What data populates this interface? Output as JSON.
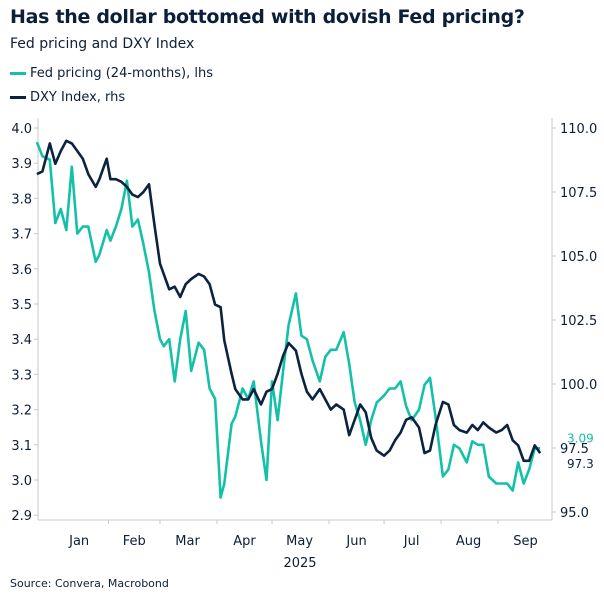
{
  "title": "Has the dollar bottomed with dovish Fed pricing?",
  "subtitle": "Fed pricing and DXY Index",
  "source": "Source: Convera, Macrobond",
  "chart_data": {
    "type": "line",
    "title": "Has the dollar bottomed with dovish Fed pricing?",
    "subtitle": "Fed pricing and DXY Index",
    "legend_placement": "top-left",
    "grid": false,
    "x_axis": {
      "type": "date",
      "tick_labels": [
        "Jan",
        "Feb",
        "Mar",
        "Apr",
        "May",
        "Jun",
        "Jul",
        "Aug",
        "Sep"
      ],
      "tick_label_dates": [
        "2025-01-16",
        "2025-02-15",
        "2025-03-16",
        "2025-04-16",
        "2025-05-16",
        "2025-06-16",
        "2025-07-16",
        "2025-08-16",
        "2025-09-16"
      ],
      "tick_dates": [
        "2025-02-01",
        "2025-03-01",
        "2025-04-01",
        "2025-05-01",
        "2025-06-01",
        "2025-07-01",
        "2025-08-01",
        "2025-09-01"
      ],
      "year_label": "2025",
      "range": [
        "2024-12-24",
        "2025-09-30"
      ]
    },
    "y_left": {
      "label": "",
      "ylim": [
        2.9,
        4.0
      ],
      "ticks": [
        "4.0",
        "3.9",
        "3.8",
        "3.7",
        "3.6",
        "3.5",
        "3.4",
        "3.3",
        "3.2",
        "3.1",
        "3.0",
        "2.9"
      ]
    },
    "y_right": {
      "label": "",
      "ylim": [
        95.0,
        110.0
      ],
      "ticks": [
        "110.0",
        "107.5",
        "105.0",
        "102.5",
        "100.0",
        "97.5",
        "95.0"
      ]
    },
    "dates": [
      "2024-12-24",
      "2024-12-27",
      "2024-12-31",
      "2025-01-03",
      "2025-01-06",
      "2025-01-09",
      "2025-01-12",
      "2025-01-15",
      "2025-01-18",
      "2025-01-21",
      "2025-01-25",
      "2025-01-27",
      "2025-01-31",
      "2025-02-02",
      "2025-02-05",
      "2025-02-08",
      "2025-02-11",
      "2025-02-14",
      "2025-02-17",
      "2025-02-20",
      "2025-02-23",
      "2025-02-26",
      "2025-03-01",
      "2025-03-03",
      "2025-03-06",
      "2025-03-09",
      "2025-03-12",
      "2025-03-15",
      "2025-03-18",
      "2025-03-22",
      "2025-03-25",
      "2025-03-28",
      "2025-03-31",
      "2025-04-03",
      "2025-04-05",
      "2025-04-09",
      "2025-04-11",
      "2025-04-15",
      "2025-04-18",
      "2025-04-21",
      "2025-04-25",
      "2025-04-28",
      "2025-05-01",
      "2025-05-04",
      "2025-05-07",
      "2025-05-10",
      "2025-05-14",
      "2025-05-17",
      "2025-05-20",
      "2025-05-23",
      "2025-05-27",
      "2025-05-30",
      "2025-06-02",
      "2025-06-05",
      "2025-06-09",
      "2025-06-12",
      "2025-06-15",
      "2025-06-18",
      "2025-06-21",
      "2025-06-24",
      "2025-06-27",
      "2025-07-01",
      "2025-07-04",
      "2025-07-07",
      "2025-07-10",
      "2025-07-13",
      "2025-07-16",
      "2025-07-20",
      "2025-07-23",
      "2025-07-26",
      "2025-07-29",
      "2025-08-02",
      "2025-08-05",
      "2025-08-08",
      "2025-08-11",
      "2025-08-15",
      "2025-08-18",
      "2025-08-21",
      "2025-08-24",
      "2025-08-27",
      "2025-08-31",
      "2025-09-03",
      "2025-09-06",
      "2025-09-09",
      "2025-09-12",
      "2025-09-15",
      "2025-09-18",
      "2025-09-21",
      "2025-09-24"
    ],
    "series": [
      {
        "name": "Fed pricing (24-months), lhs",
        "axis": "left",
        "color": "#14c1a8",
        "last_value_label": "3.09",
        "values": [
          3.96,
          3.92,
          3.91,
          3.73,
          3.77,
          3.71,
          3.89,
          3.7,
          3.72,
          3.72,
          3.62,
          3.64,
          3.71,
          3.68,
          3.72,
          3.77,
          3.85,
          3.72,
          3.74,
          3.67,
          3.59,
          3.48,
          3.4,
          3.38,
          3.4,
          3.28,
          3.4,
          3.48,
          3.31,
          3.39,
          3.37,
          3.26,
          3.23,
          2.95,
          2.99,
          3.16,
          3.18,
          3.26,
          3.23,
          3.28,
          3.11,
          3.0,
          3.28,
          3.17,
          3.31,
          3.44,
          3.53,
          3.41,
          3.4,
          3.34,
          3.28,
          3.35,
          3.37,
          3.37,
          3.42,
          3.33,
          3.22,
          3.17,
          3.1,
          3.17,
          3.22,
          3.24,
          3.26,
          3.26,
          3.28,
          3.21,
          3.17,
          3.2,
          3.27,
          3.29,
          3.18,
          3.01,
          3.03,
          3.1,
          3.09,
          3.05,
          3.11,
          3.1,
          3.1,
          3.01,
          2.99,
          2.99,
          2.99,
          2.97,
          3.05,
          2.99,
          3.03,
          3.09,
          3.09
        ]
      },
      {
        "name": "DXY Index, rhs",
        "axis": "right",
        "color": "#0b2340",
        "last_value_label": "97.3",
        "values": [
          108.2,
          108.3,
          109.4,
          108.6,
          109.1,
          109.5,
          109.4,
          109.1,
          108.8,
          108.2,
          107.7,
          108.0,
          108.8,
          108.0,
          108.0,
          107.9,
          107.7,
          107.4,
          107.3,
          107.5,
          107.8,
          106.2,
          104.7,
          104.3,
          103.7,
          103.8,
          103.4,
          103.9,
          104.1,
          104.3,
          104.2,
          103.9,
          103.1,
          103.0,
          101.7,
          100.4,
          99.8,
          99.4,
          99.4,
          99.8,
          99.2,
          99.7,
          99.8,
          100.4,
          101.1,
          101.6,
          101.3,
          100.4,
          99.7,
          99.4,
          99.8,
          99.4,
          99.0,
          99.2,
          99.0,
          98.0,
          98.6,
          99.2,
          98.9,
          97.9,
          97.4,
          97.2,
          97.4,
          97.8,
          98.1,
          98.6,
          98.7,
          98.3,
          97.3,
          97.4,
          98.4,
          99.3,
          99.2,
          98.4,
          98.2,
          98.1,
          98.4,
          98.2,
          98.5,
          98.3,
          98.1,
          98.2,
          98.4,
          97.8,
          97.6,
          97.0,
          97.0,
          97.6,
          97.3
        ]
      }
    ]
  }
}
